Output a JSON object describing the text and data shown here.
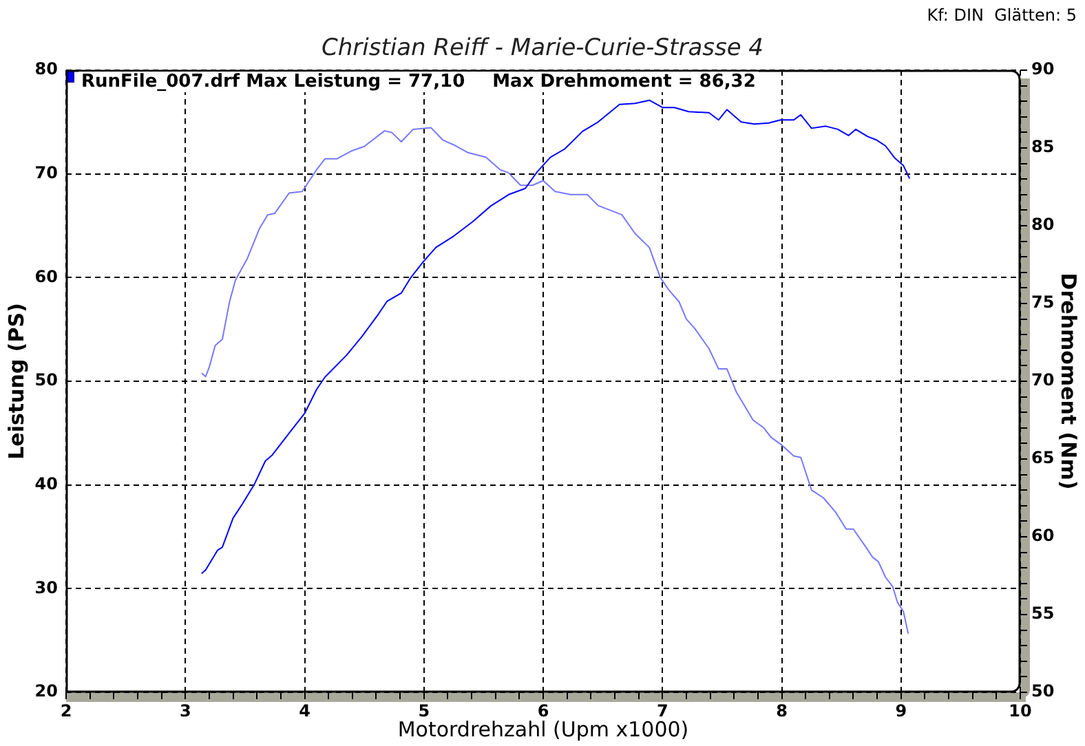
{
  "chart_data": {
    "type": "line",
    "title": "Christian Reiff - Marie-Curie-Strasse 4",
    "xlabel": "Motordrehzahl (Upm x1000)",
    "ylabel": "Leistung (PS)",
    "y2label": "Drehmoment (Nm)",
    "annotations": [
      "Kf: DIN  Glätten: 5",
      "RunFile_007.drf Max Leistung = 77,10",
      "Max Drehmoment = 86,32"
    ],
    "xlim": [
      2,
      10
    ],
    "xticks": [
      2,
      {
        "value": 2.2,
        "label": null
      },
      {
        "value": 2.4,
        "label": null
      },
      {
        "value": 2.6,
        "label": null
      },
      {
        "value": 2.8,
        "label": null
      },
      3,
      {
        "value": 3.2,
        "label": null
      },
      {
        "value": 3.4,
        "label": null
      },
      {
        "value": 3.6,
        "label": null
      },
      {
        "value": 3.8,
        "label": null
      },
      4,
      {
        "value": 4.2,
        "label": null
      },
      {
        "value": 4.4,
        "label": null
      },
      {
        "value": 4.6,
        "label": null
      },
      {
        "value": 4.8,
        "label": null
      },
      5,
      {
        "value": 5.2,
        "label": null
      },
      {
        "value": 5.4,
        "label": null
      },
      {
        "value": 5.6,
        "label": null
      },
      {
        "value": 5.8,
        "label": null
      },
      6,
      {
        "value": 6.2,
        "label": null
      },
      {
        "value": 6.4,
        "label": null
      },
      {
        "value": 6.6,
        "label": null
      },
      {
        "value": 6.8,
        "label": null
      },
      7,
      {
        "value": 7.2,
        "label": null
      },
      {
        "value": 7.4,
        "label": null
      },
      {
        "value": 7.6,
        "label": null
      },
      {
        "value": 7.8,
        "label": null
      },
      8,
      {
        "value": 8.2,
        "label": null
      },
      {
        "value": 8.4,
        "label": null
      },
      {
        "value": 8.6,
        "label": null
      },
      {
        "value": 8.8,
        "label": null
      },
      9,
      {
        "value": 9.2,
        "label": null
      },
      {
        "value": 9.4,
        "label": null
      },
      {
        "value": 9.6,
        "label": null
      },
      {
        "value": 9.8,
        "label": null
      },
      10
    ],
    "ylim": [
      20,
      80
    ],
    "yticks": [
      20,
      30,
      40,
      50,
      60,
      70,
      80
    ],
    "y2lim": [
      50,
      90
    ],
    "y2ticks": [
      50,
      {
        "value": 51,
        "label": null
      },
      {
        "value": 52,
        "label": null
      },
      {
        "value": 53,
        "label": null
      },
      {
        "value": 54,
        "label": null
      },
      55,
      {
        "value": 56,
        "label": null
      },
      {
        "value": 57,
        "label": null
      },
      {
        "value": 58,
        "label": null
      },
      {
        "value": 59,
        "label": null
      },
      60,
      {
        "value": 61,
        "label": null
      },
      {
        "value": 62,
        "label": null
      },
      {
        "value": 63,
        "label": null
      },
      {
        "value": 64,
        "label": null
      },
      65,
      {
        "value": 66,
        "label": null
      },
      {
        "value": 67,
        "label": null
      },
      {
        "value": 68,
        "label": null
      },
      {
        "value": 69,
        "label": null
      },
      70,
      {
        "value": 71,
        "label": null
      },
      {
        "value": 72,
        "label": null
      },
      {
        "value": 73,
        "label": null
      },
      {
        "value": 74,
        "label": null
      },
      75,
      {
        "value": 76,
        "label": null
      },
      {
        "value": 77,
        "label": null
      },
      {
        "value": 78,
        "label": null
      },
      {
        "value": 79,
        "label": null
      },
      80,
      {
        "value": 81,
        "label": null
      },
      {
        "value": 82,
        "label": null
      },
      {
        "value": 83,
        "label": null
      },
      {
        "value": 84,
        "label": null
      },
      85,
      {
        "value": 86,
        "label": null
      },
      {
        "value": 87,
        "label": null
      },
      {
        "value": 88,
        "label": null
      },
      {
        "value": 89,
        "label": null
      },
      90
    ],
    "grid": true,
    "marker": "none",
    "series": [
      {
        "color": "#0000ff",
        "x": [
          3.14,
          3.17,
          3.27,
          3.31,
          3.4,
          3.48,
          3.58,
          3.67,
          3.73,
          3.87,
          4.0,
          4.1,
          4.17,
          4.35,
          4.48,
          4.62,
          4.69,
          4.81,
          4.89,
          5.0,
          5.1,
          5.25,
          5.41,
          5.56,
          5.71,
          5.85,
          5.95,
          6.06,
          6.18,
          6.33,
          6.46,
          6.64,
          6.77,
          6.89,
          7.0,
          7.1,
          7.22,
          7.39,
          7.47,
          7.54,
          7.66,
          7.77,
          7.89,
          7.99,
          8.1,
          8.16,
          8.25,
          8.37,
          8.47,
          8.56,
          8.62,
          8.72,
          8.79,
          8.87,
          8.95,
          9.02,
          9.07
        ],
        "values": [
          31.5,
          31.8,
          33.7,
          34.0,
          36.8,
          38.2,
          40.1,
          42.3,
          42.9,
          45.0,
          46.9,
          49.2,
          50.4,
          52.5,
          54.3,
          56.5,
          57.7,
          58.5,
          60.0,
          61.6,
          62.9,
          64.0,
          65.4,
          66.9,
          68.0,
          68.6,
          70.2,
          71.6,
          72.4,
          74.1,
          75.0,
          76.7,
          76.8,
          77.1,
          76.4,
          76.4,
          76.0,
          75.9,
          75.2,
          76.2,
          75.0,
          74.8,
          74.9,
          75.2,
          75.2,
          75.7,
          74.4,
          74.6,
          74.3,
          73.7,
          74.3,
          73.6,
          73.3,
          72.7,
          71.5,
          70.8,
          69.6
        ]
      },
      {
        "color": "#7878ff",
        "axis": "y2",
        "x": [
          3.14,
          3.17,
          3.2,
          3.25,
          3.31,
          3.37,
          3.42,
          3.52,
          3.62,
          3.69,
          3.75,
          3.87,
          3.98,
          4.1,
          4.17,
          4.27,
          4.39,
          4.5,
          4.67,
          4.73,
          4.81,
          4.91,
          5.06,
          5.16,
          5.25,
          5.37,
          5.52,
          5.64,
          5.71,
          5.81,
          5.91,
          6.0,
          6.1,
          6.23,
          6.37,
          6.46,
          6.66,
          6.77,
          6.89,
          6.98,
          7.05,
          7.14,
          7.2,
          7.27,
          7.39,
          7.47,
          7.54,
          7.62,
          7.76,
          7.85,
          7.91,
          8.0,
          8.1,
          8.16,
          8.25,
          8.35,
          8.45,
          8.54,
          8.6,
          8.7,
          8.76,
          8.81,
          8.87,
          8.93,
          8.97,
          9.02,
          9.06
        ],
        "values": [
          70.5,
          70.3,
          70.9,
          72.3,
          72.7,
          75.1,
          76.5,
          77.9,
          79.8,
          80.7,
          80.8,
          82.1,
          82.2,
          83.6,
          84.3,
          84.3,
          84.8,
          85.1,
          86.1,
          86.0,
          85.4,
          86.2,
          86.3,
          85.5,
          85.2,
          84.7,
          84.4,
          83.6,
          83.4,
          82.6,
          82.6,
          82.9,
          82.2,
          82.0,
          82.0,
          81.3,
          80.7,
          79.5,
          78.6,
          76.7,
          75.9,
          75.1,
          74.0,
          73.4,
          72.1,
          70.8,
          70.8,
          69.3,
          67.5,
          67.0,
          66.4,
          65.9,
          65.2,
          65.1,
          63.0,
          62.5,
          61.6,
          60.5,
          60.5,
          59.4,
          58.7,
          58.4,
          57.4,
          56.8,
          55.8,
          55.2,
          53.8
        ]
      }
    ]
  }
}
